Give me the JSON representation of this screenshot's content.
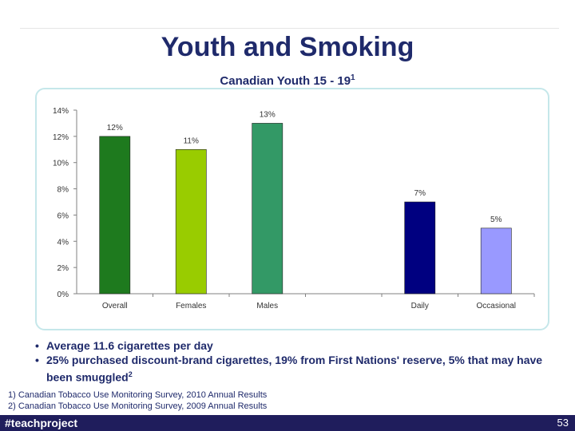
{
  "slide": {
    "title": "Youth and Smoking",
    "subtitle": "Canadian Youth 15 - 19",
    "subtitle_ref": "1",
    "bullets": [
      {
        "text": "Average 11.6 cigarettes per day",
        "sup": ""
      },
      {
        "text": "25% purchased discount-brand cigarettes, 19% from First Nations' reserve, 5% that may have been smuggled",
        "sup": "2"
      }
    ],
    "footnotes": [
      "1) Canadian Tobacco Use Monitoring Survey, 2010 Annual Results",
      "2) Canadian Tobacco Use Monitoring Survey, 2009 Annual Results"
    ],
    "footer_tag": "#teachproject",
    "page_number": "53"
  },
  "chart_data": {
    "type": "bar",
    "categories": [
      "Overall",
      "Females",
      "Males",
      "",
      "Daily",
      "Occasional"
    ],
    "values": [
      12,
      11,
      13,
      null,
      7,
      5
    ],
    "data_labels": [
      "12%",
      "11%",
      "13%",
      "",
      "7%",
      "5%"
    ],
    "colors": [
      "#1e7a1e",
      "#99cc00",
      "#339966",
      "",
      "#000080",
      "#9999ff"
    ],
    "ylim": [
      0,
      14
    ],
    "yticks": [
      "0%",
      "2%",
      "4%",
      "6%",
      "8%",
      "10%",
      "12%",
      "14%"
    ],
    "ytick_values": [
      0,
      2,
      4,
      6,
      8,
      10,
      12,
      14
    ],
    "grid": false,
    "legend": "none"
  }
}
